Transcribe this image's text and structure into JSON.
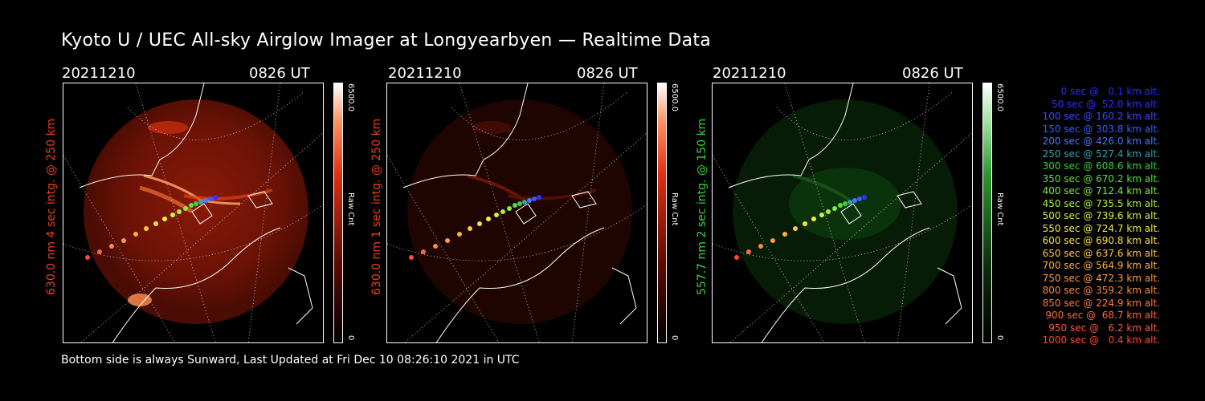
{
  "title": "Kyoto U / UEC All-sky Airglow Imager at Longyearbyen — Realtime Data",
  "footer": "Bottom side is always Sunward, Last Updated at Fri Dec 10 08:26:10 2021 in UTC",
  "panels": [
    {
      "date": "20211210",
      "time": "0826 UT",
      "label": "630.0 nm 4 sec intg. @ 250 km",
      "label_color": "#e8401a",
      "cbar_max": "6500.0",
      "cbar_min": "0",
      "cbar_unit": "Raw Cnt",
      "cbar_color": "#e03010"
    },
    {
      "date": "20211210",
      "time": "0826 UT",
      "label": "630.0 nm 1 sec intg. @ 250 km",
      "label_color": "#e8401a",
      "cbar_max": "6500.0",
      "cbar_min": "0",
      "cbar_unit": "Raw Cnt",
      "cbar_color": "#e03010"
    },
    {
      "date": "20211210",
      "time": "0826 UT",
      "label": "557.7 nm 2 sec intg. @ 150 km",
      "label_color": "#3ad63a",
      "cbar_max": "6500.0",
      "cbar_min": "0",
      "cbar_unit": "Raw Cnt",
      "cbar_color": "#2a9a2a"
    }
  ],
  "legend": [
    {
      "text": "0 sec @   0.1 km alt.",
      "color": "#2a2aff"
    },
    {
      "text": "50 sec @  52.0 km alt.",
      "color": "#3030ff"
    },
    {
      "text": "100 sec @ 160.2 km alt.",
      "color": "#3a4cff"
    },
    {
      "text": "150 sec @ 303.8 km alt.",
      "color": "#3a5cff"
    },
    {
      "text": "200 sec @ 426.0 km alt.",
      "color": "#4a7aff"
    },
    {
      "text": "250 sec @ 527.4 km alt.",
      "color": "#38a0b0"
    },
    {
      "text": "300 sec @ 608.6 km alt.",
      "color": "#36d236"
    },
    {
      "text": "350 sec @ 670.2 km alt.",
      "color": "#56e040"
    },
    {
      "text": "400 sec @ 712.4 km alt.",
      "color": "#7cf040"
    },
    {
      "text": "450 sec @ 735.5 km alt.",
      "color": "#a8f040"
    },
    {
      "text": "500 sec @ 739.6 km alt.",
      "color": "#d0f040"
    },
    {
      "text": "550 sec @ 724.7 km alt.",
      "color": "#f0f040"
    },
    {
      "text": "600 sec @ 690.8 km alt.",
      "color": "#ffe040"
    },
    {
      "text": "650 sec @ 637.6 km alt.",
      "color": "#ffc840"
    },
    {
      "text": "700 sec @ 564.9 km alt.",
      "color": "#ffb040"
    },
    {
      "text": "750 sec @ 472.3 km alt.",
      "color": "#ff9a40"
    },
    {
      "text": "800 sec @ 359.2 km alt.",
      "color": "#ff8a40"
    },
    {
      "text": "850 sec @ 224.9 km alt.",
      "color": "#ff7a40"
    },
    {
      "text": "900 sec @  68.7 km alt.",
      "color": "#ff6a40"
    },
    {
      "text": "950 sec @   6.2 km alt.",
      "color": "#ff5a40"
    },
    {
      "text": "1000 sec @   0.4 km alt.",
      "color": "#ff4a30"
    }
  ]
}
